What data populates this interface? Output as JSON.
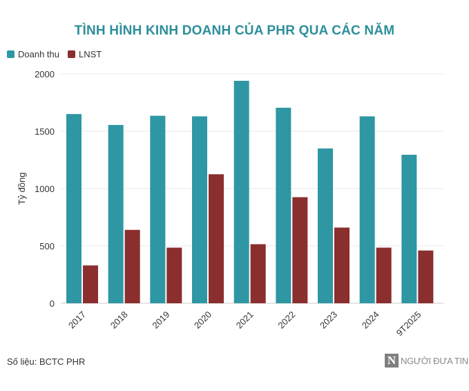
{
  "chart_data": {
    "type": "bar",
    "title": "TÌNH HÌNH KINH DOANH CỦA PHR QUA CÁC NĂM",
    "ylabel": "Tỷ đồng",
    "xlabel": "",
    "categories": [
      "2017",
      "2018",
      "2019",
      "2020",
      "2021",
      "2022",
      "2023",
      "2024",
      "9T2025"
    ],
    "series": [
      {
        "name": "Doanh thu",
        "color": "#2e97a3",
        "values": [
          1650,
          1555,
          1635,
          1630,
          1940,
          1705,
          1350,
          1630,
          1295
        ]
      },
      {
        "name": "LNST",
        "color": "#8b2e2e",
        "values": [
          330,
          640,
          485,
          1125,
          515,
          925,
          660,
          485,
          460
        ]
      }
    ],
    "ylim": [
      0,
      2000
    ],
    "yticks": [
      "0",
      "500",
      "1000",
      "1500",
      "2000"
    ],
    "grid": true,
    "legend": "top-left"
  },
  "source": "Số liệu: BCTC PHR",
  "logo": {
    "mark": "N",
    "text": "NGƯỜI ĐƯA TIN"
  }
}
